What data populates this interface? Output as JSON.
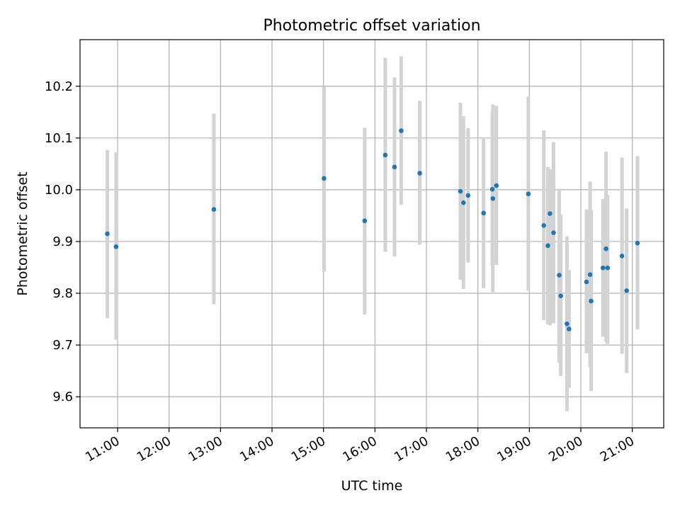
{
  "chart_data": {
    "type": "scatter",
    "title": "Photometric offset variation",
    "xlabel": "UTC time",
    "ylabel": "Photometric offset",
    "x_unit": "hours (UTC)",
    "xlim": [
      10.27,
      21.61
    ],
    "ylim": [
      9.54,
      10.29
    ],
    "x_ticks": [
      {
        "value": 11,
        "label": "11:00"
      },
      {
        "value": 12,
        "label": "12:00"
      },
      {
        "value": 13,
        "label": "13:00"
      },
      {
        "value": 14,
        "label": "14:00"
      },
      {
        "value": 15,
        "label": "15:00"
      },
      {
        "value": 16,
        "label": "16:00"
      },
      {
        "value": 17,
        "label": "17:00"
      },
      {
        "value": 18,
        "label": "18:00"
      },
      {
        "value": 19,
        "label": "19:00"
      },
      {
        "value": 20,
        "label": "20:00"
      },
      {
        "value": 21,
        "label": "21:00"
      }
    ],
    "y_ticks": [
      {
        "value": 9.6,
        "label": "9.6"
      },
      {
        "value": 9.7,
        "label": "9.7"
      },
      {
        "value": 9.8,
        "label": "9.8"
      },
      {
        "value": 9.9,
        "label": "9.9"
      },
      {
        "value": 10.0,
        "label": "10.0"
      },
      {
        "value": 10.1,
        "label": "10.1"
      },
      {
        "value": 10.2,
        "label": "10.2"
      }
    ],
    "grid": true,
    "series": [
      {
        "point_color": "#1f77b4",
        "errorbar_color": "#d3d3d3",
        "points": [
          {
            "x": 10.8,
            "y": 9.915,
            "yerr_low": 9.752,
            "yerr_high": 10.077
          },
          {
            "x": 10.97,
            "y": 9.89,
            "yerr_low": 9.71,
            "yerr_high": 10.072
          },
          {
            "x": 12.87,
            "y": 9.962,
            "yerr_low": 9.779,
            "yerr_high": 10.147
          },
          {
            "x": 15.01,
            "y": 10.022,
            "yerr_low": 9.842,
            "yerr_high": 10.199
          },
          {
            "x": 15.8,
            "y": 9.94,
            "yerr_low": 9.759,
            "yerr_high": 10.12
          },
          {
            "x": 16.2,
            "y": 10.067,
            "yerr_low": 9.88,
            "yerr_high": 10.255
          },
          {
            "x": 16.38,
            "y": 10.044,
            "yerr_low": 9.871,
            "yerr_high": 10.217
          },
          {
            "x": 16.51,
            "y": 10.114,
            "yerr_low": 9.971,
            "yerr_high": 10.258
          },
          {
            "x": 16.87,
            "y": 10.032,
            "yerr_low": 9.894,
            "yerr_high": 10.172
          },
          {
            "x": 17.66,
            "y": 9.997,
            "yerr_low": 9.826,
            "yerr_high": 10.168
          },
          {
            "x": 17.72,
            "y": 9.975,
            "yerr_low": 9.808,
            "yerr_high": 10.142
          },
          {
            "x": 17.81,
            "y": 9.989,
            "yerr_low": 9.859,
            "yerr_high": 10.119
          },
          {
            "x": 18.11,
            "y": 9.955,
            "yerr_low": 9.81,
            "yerr_high": 10.101
          },
          {
            "x": 18.28,
            "y": 10.001,
            "yerr_low": 9.853,
            "yerr_high": 10.149
          },
          {
            "x": 18.29,
            "y": 9.983,
            "yerr_low": 9.802,
            "yerr_high": 10.165
          },
          {
            "x": 18.36,
            "y": 10.008,
            "yerr_low": 9.855,
            "yerr_high": 10.162
          },
          {
            "x": 18.98,
            "y": 9.992,
            "yerr_low": 9.805,
            "yerr_high": 10.18
          },
          {
            "x": 19.28,
            "y": 9.931,
            "yerr_low": 9.748,
            "yerr_high": 10.115
          },
          {
            "x": 19.36,
            "y": 9.892,
            "yerr_low": 9.74,
            "yerr_high": 10.044
          },
          {
            "x": 19.4,
            "y": 9.954,
            "yerr_low": 9.738,
            "yerr_high": 10.04
          },
          {
            "x": 19.47,
            "y": 9.917,
            "yerr_low": 9.742,
            "yerr_high": 10.092
          },
          {
            "x": 19.58,
            "y": 9.835,
            "yerr_low": 9.666,
            "yerr_high": 10.002
          },
          {
            "x": 19.61,
            "y": 9.795,
            "yerr_low": 9.64,
            "yerr_high": 9.952
          },
          {
            "x": 19.73,
            "y": 9.741,
            "yerr_low": 9.572,
            "yerr_high": 9.91
          },
          {
            "x": 19.77,
            "y": 9.731,
            "yerr_low": 9.617,
            "yerr_high": 9.845
          },
          {
            "x": 20.11,
            "y": 9.822,
            "yerr_low": 9.684,
            "yerr_high": 9.962
          },
          {
            "x": 20.18,
            "y": 9.836,
            "yerr_low": 9.657,
            "yerr_high": 10.016
          },
          {
            "x": 20.2,
            "y": 9.785,
            "yerr_low": 9.611,
            "yerr_high": 9.96
          },
          {
            "x": 20.43,
            "y": 9.849,
            "yerr_low": 9.716,
            "yerr_high": 9.982
          },
          {
            "x": 20.49,
            "y": 9.886,
            "yerr_low": 9.706,
            "yerr_high": 10.074
          },
          {
            "x": 20.52,
            "y": 9.849,
            "yerr_low": 9.702,
            "yerr_high": 9.99
          },
          {
            "x": 20.8,
            "y": 9.872,
            "yerr_low": 9.683,
            "yerr_high": 10.062
          },
          {
            "x": 20.89,
            "y": 9.805,
            "yerr_low": 9.646,
            "yerr_high": 9.964
          },
          {
            "x": 21.1,
            "y": 9.897,
            "yerr_low": 9.73,
            "yerr_high": 10.065
          }
        ]
      }
    ]
  }
}
